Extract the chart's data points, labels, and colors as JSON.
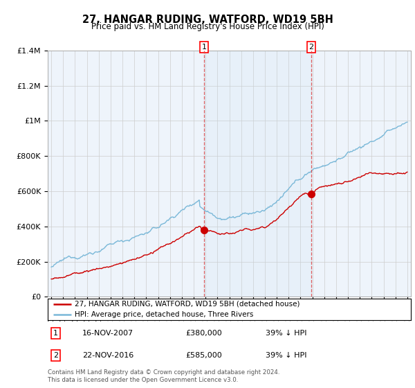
{
  "title": "27, HANGAR RUDING, WATFORD, WD19 5BH",
  "subtitle": "Price paid vs. HM Land Registry's House Price Index (HPI)",
  "legend_line1": "27, HANGAR RUDING, WATFORD, WD19 5BH (detached house)",
  "legend_line2": "HPI: Average price, detached house, Three Rivers",
  "annotation1_label": "1",
  "annotation1_date": "16-NOV-2007",
  "annotation1_price": "£380,000",
  "annotation1_hpi": "39% ↓ HPI",
  "annotation1_year": 2007.88,
  "annotation1_value": 380000,
  "annotation2_label": "2",
  "annotation2_date": "22-NOV-2016",
  "annotation2_price": "£585,000",
  "annotation2_hpi": "39% ↓ HPI",
  "annotation2_year": 2016.9,
  "annotation2_value": 585000,
  "footer": "Contains HM Land Registry data © Crown copyright and database right 2024.\nThis data is licensed under the Open Government Licence v3.0.",
  "hpi_color": "#7ab8d8",
  "price_color": "#cc0000",
  "background_color": "#ffffff",
  "plot_bg_color": "#eef4fb",
  "grid_color": "#cccccc",
  "ylim": [
    0,
    1400000
  ],
  "xlim_start": 1994.7,
  "xlim_end": 2025.3
}
